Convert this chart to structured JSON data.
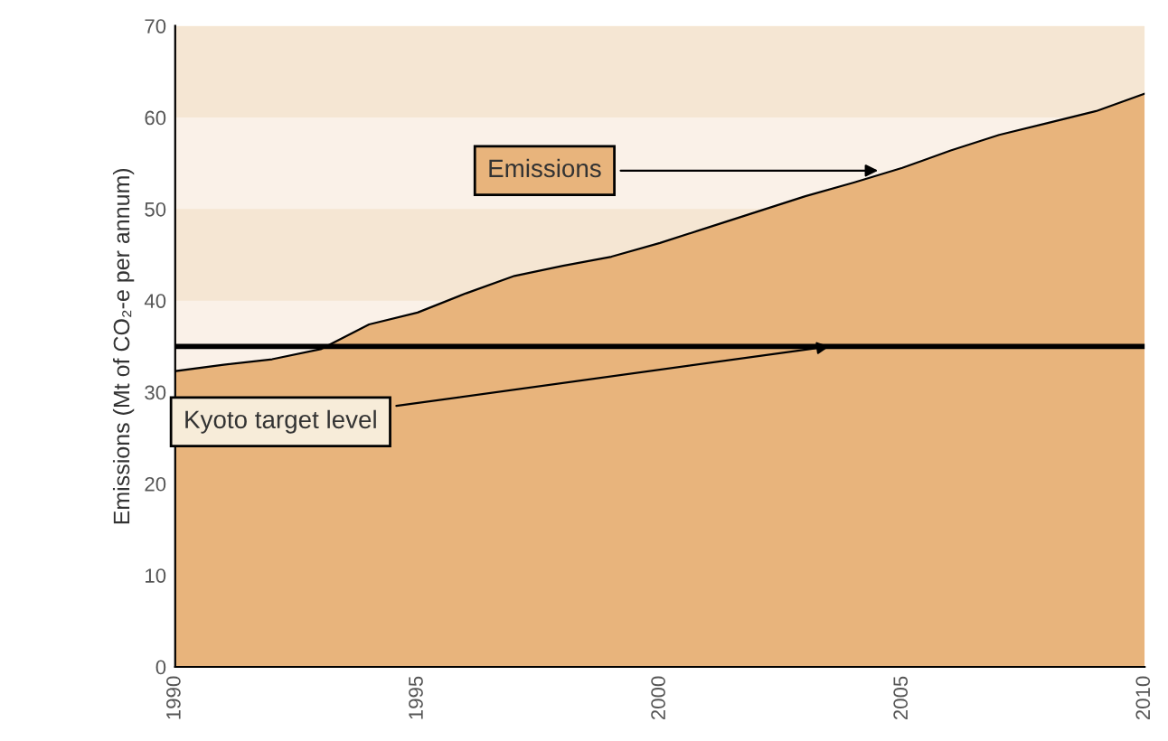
{
  "chart_data": {
    "type": "area",
    "ylabel": "Emissions (Mt of CO₂-e per annum)",
    "x": [
      1990,
      1991,
      1992,
      1993,
      1994,
      1995,
      1996,
      1997,
      1998,
      1999,
      2000,
      2001,
      2002,
      2003,
      2004,
      2005,
      2006,
      2007,
      2008,
      2009,
      2010
    ],
    "series": [
      {
        "color": "#e8b47c",
        "values": [
          32.3,
          33.0,
          33.6,
          34.7,
          37.4,
          38.7,
          40.8,
          42.7,
          43.8,
          44.8,
          46.3,
          48.0,
          49.7,
          51.4,
          52.9,
          54.5,
          56.4,
          58.1,
          59.4,
          60.7,
          62.6
        ]
      }
    ],
    "xlim": [
      1990,
      2010
    ],
    "xticks": [
      1990,
      1995,
      2000,
      2005,
      2010
    ],
    "ylim": [
      0,
      70
    ],
    "yticks": [
      0,
      10,
      20,
      30,
      40,
      50,
      60,
      70
    ],
    "grid": false,
    "bands": [
      {
        "axis": "y",
        "from": 40,
        "to": 50,
        "color": "#f5e6d3"
      },
      {
        "axis": "y",
        "from": 60,
        "to": 70,
        "color": "#f5e6d3"
      }
    ],
    "ref_lines": [
      {
        "axis": "y",
        "value": 35,
        "color": "#000000",
        "line_style": "solid"
      }
    ],
    "annotations": [
      {
        "text": "Emissions",
        "x": 2004.5,
        "y": 54.2
      },
      {
        "text": "Kyoto target level",
        "x": 2003.5,
        "y": 35
      }
    ]
  }
}
